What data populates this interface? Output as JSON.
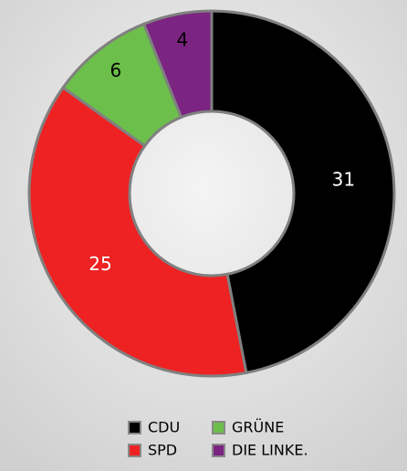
{
  "chart_data": {
    "type": "donut",
    "categories": [
      "CDU",
      "SPD",
      "GRÜNE",
      "DIE LINKE."
    ],
    "values": [
      31,
      25,
      6,
      4
    ],
    "colors": [
      "#000000",
      "#ee2222",
      "#6cbf4a",
      "#7b2481"
    ]
  }
}
